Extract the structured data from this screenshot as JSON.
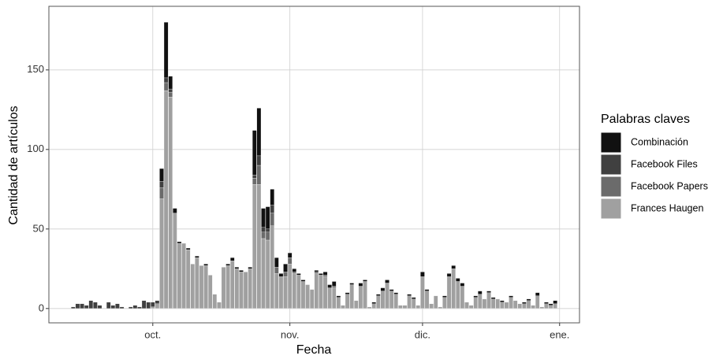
{
  "chart_data": {
    "type": "stacked_bar",
    "x_label": "Fecha",
    "y_label": "Cantidad de artículos",
    "legend_title": "Palabras claves",
    "legend_position": "right",
    "grid": true,
    "categories": [
      null,
      null,
      null,
      null,
      null,
      null,
      null,
      null,
      null,
      null,
      null,
      null,
      null,
      null,
      null,
      null,
      null,
      null,
      null,
      null,
      null,
      null,
      null,
      "oct.",
      null,
      null,
      null,
      null,
      null,
      null,
      null,
      null,
      null,
      null,
      null,
      null,
      null,
      null,
      null,
      null,
      null,
      null,
      null,
      null,
      null,
      null,
      null,
      null,
      null,
      null,
      null,
      null,
      null,
      null,
      "nov.",
      null,
      null,
      null,
      null,
      null,
      null,
      null,
      null,
      null,
      null,
      null,
      null,
      null,
      null,
      null,
      null,
      null,
      null,
      null,
      null,
      null,
      null,
      null,
      null,
      null,
      null,
      null,
      null,
      null,
      "dic.",
      null,
      null,
      null,
      null,
      null,
      null,
      null,
      null,
      null,
      null,
      null,
      null,
      null,
      null,
      null,
      null,
      null,
      null,
      null,
      null,
      null,
      null,
      null,
      null,
      null,
      null,
      null,
      null,
      null,
      null,
      "ene.",
      null,
      null,
      null,
      null
    ],
    "series": [
      {
        "name": "Combinación",
        "color": "#111111",
        "values": [
          0,
          0,
          0,
          0,
          0,
          0,
          0,
          0,
          0,
          0,
          0,
          0,
          0,
          0,
          0,
          0,
          0,
          0,
          0,
          0,
          0,
          0,
          0,
          0,
          0,
          8,
          35,
          8,
          3,
          1,
          0,
          1,
          0,
          1,
          0,
          1,
          0,
          0,
          0,
          0,
          1,
          2,
          1,
          1,
          0,
          1,
          28,
          30,
          12,
          14,
          10,
          6,
          2,
          5,
          3,
          2,
          1,
          1,
          0,
          0,
          1,
          1,
          2,
          2,
          3,
          1,
          0,
          1,
          1,
          0,
          2,
          1,
          0,
          1,
          1,
          2,
          2,
          1,
          1,
          0,
          0,
          1,
          1,
          0,
          3,
          1,
          0,
          0,
          0,
          1,
          2,
          2,
          2,
          2,
          0,
          0,
          1,
          2,
          0,
          1,
          1,
          0,
          1,
          0,
          1,
          0,
          0,
          1,
          1,
          0,
          2,
          0,
          1,
          1,
          2,
          0,
          0,
          0,
          0,
          0
        ]
      },
      {
        "name": "Facebook Files",
        "color": "#404040",
        "values": [
          0,
          0,
          0,
          0,
          0,
          1,
          3,
          3,
          2,
          5,
          4,
          2,
          0,
          4,
          2,
          3,
          1,
          0,
          1,
          2,
          1,
          5,
          4,
          3,
          2,
          4,
          3,
          2,
          0,
          0,
          0,
          0,
          0,
          0,
          0,
          0,
          0,
          0,
          0,
          0,
          0,
          0,
          0,
          0,
          0,
          0,
          2,
          6,
          3,
          2,
          5,
          0,
          0,
          0,
          0,
          0,
          0,
          0,
          0,
          0,
          0,
          0,
          0,
          0,
          0,
          0,
          0,
          0,
          0,
          0,
          0,
          0,
          0,
          0,
          0,
          0,
          0,
          0,
          0,
          0,
          0,
          0,
          0,
          0,
          0,
          0,
          0,
          0,
          0,
          0,
          0,
          0,
          0,
          0,
          0,
          0,
          0,
          0,
          0,
          0,
          0,
          0,
          0,
          0,
          0,
          0,
          0,
          0,
          0,
          0,
          0,
          0,
          0,
          0,
          0,
          0,
          0,
          0,
          0,
          0
        ]
      },
      {
        "name": "Facebook Papers",
        "color": "#6b6b6b",
        "values": [
          0,
          0,
          0,
          0,
          0,
          0,
          0,
          0,
          0,
          0,
          0,
          0,
          0,
          0,
          0,
          0,
          0,
          0,
          0,
          0,
          0,
          0,
          0,
          0,
          0,
          7,
          5,
          3,
          0,
          0,
          0,
          0,
          0,
          0,
          0,
          0,
          0,
          0,
          0,
          0,
          0,
          0,
          0,
          0,
          0,
          0,
          4,
          12,
          4,
          5,
          8,
          4,
          0,
          3,
          4,
          1,
          0,
          0,
          0,
          0,
          1,
          0,
          1,
          0,
          1,
          0,
          0,
          0,
          0,
          0,
          0,
          0,
          0,
          0,
          0,
          0,
          0,
          0,
          0,
          0,
          0,
          0,
          0,
          0,
          0,
          0,
          0,
          0,
          0,
          0,
          0,
          0,
          0,
          0,
          0,
          0,
          0,
          0,
          0,
          0,
          0,
          0,
          0,
          0,
          0,
          0,
          0,
          0,
          0,
          0,
          0,
          0,
          0,
          0,
          0,
          0,
          0,
          0,
          0,
          0
        ]
      },
      {
        "name": "Frances Haugen",
        "color": "#a0a0a0",
        "values": [
          0,
          0,
          0,
          0,
          0,
          0,
          0,
          0,
          0,
          0,
          0,
          0,
          0,
          0,
          0,
          0,
          0,
          0,
          0,
          0,
          0,
          0,
          0,
          1,
          3,
          69,
          137,
          133,
          60,
          41,
          41,
          37,
          28,
          32,
          27,
          27,
          21,
          9,
          4,
          26,
          27,
          30,
          25,
          23,
          23,
          25,
          78,
          78,
          44,
          43,
          52,
          22,
          20,
          20,
          28,
          22,
          21,
          17,
          15,
          12,
          22,
          21,
          20,
          13,
          13,
          7,
          2,
          9,
          15,
          5,
          14,
          17,
          1,
          3,
          8,
          11,
          16,
          11,
          9,
          2,
          2,
          8,
          6,
          2,
          20,
          11,
          3,
          8,
          1,
          7,
          20,
          25,
          17,
          14,
          4,
          2,
          7,
          9,
          6,
          10,
          6,
          6,
          4,
          4,
          7,
          5,
          3,
          3,
          5,
          2,
          8,
          1,
          3,
          2,
          3,
          0,
          0,
          0,
          0,
          0
        ]
      }
    ],
    "ylim": [
      -9,
      190
    ],
    "yticks": [
      0,
      50,
      100,
      150
    ]
  }
}
